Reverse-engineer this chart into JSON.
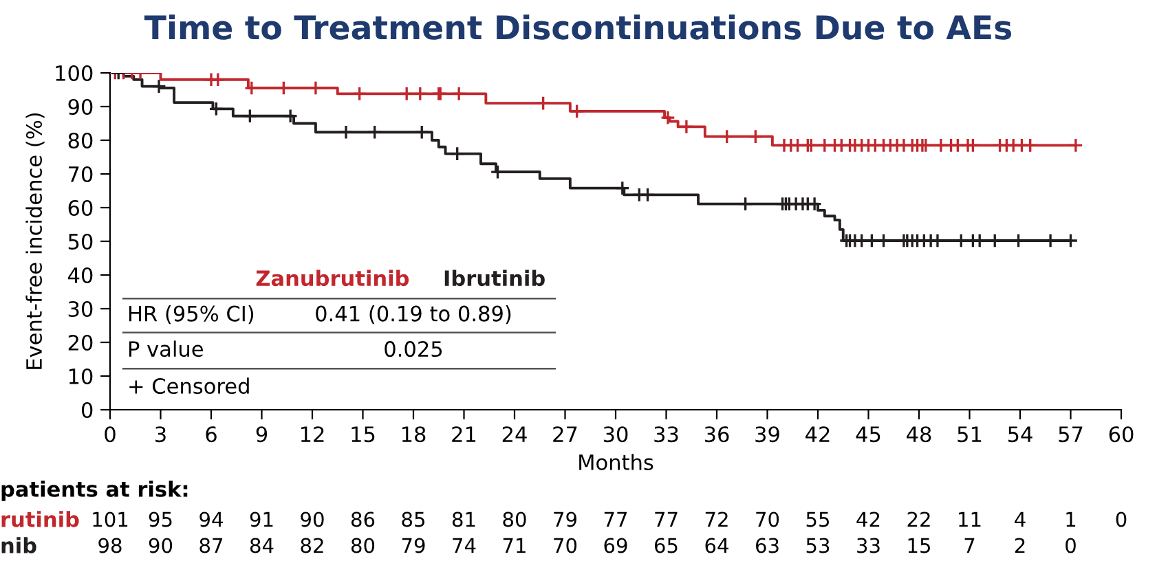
{
  "chart_data": {
    "type": "step",
    "title": "Time to Treatment Discontinuations Due to AEs",
    "xlabel": "Months",
    "ylabel": "Event-free incidence (%)",
    "xlim": [
      0,
      60
    ],
    "xticks": [
      0,
      3,
      6,
      9,
      12,
      15,
      18,
      21,
      24,
      27,
      30,
      33,
      36,
      39,
      42,
      45,
      48,
      51,
      54,
      57,
      60
    ],
    "ylim": [
      0,
      100
    ],
    "yticks": [
      0,
      10,
      20,
      30,
      40,
      50,
      60,
      70,
      80,
      90,
      100
    ],
    "grid": false,
    "legend": "bottom left",
    "series": [
      {
        "name": "Zanubrutinib",
        "color": "#c1272d",
        "x": [
          0,
          3.0,
          8.2,
          13.5,
          22.3,
          27.3,
          32.9,
          33.2,
          33.7,
          35.3,
          39.3,
          57.3
        ],
        "values": [
          100,
          98,
          95.5,
          93.8,
          91,
          88.6,
          86.7,
          85.6,
          84,
          81.1,
          78.5,
          78.5
        ]
      },
      {
        "name": "Ibrutinib",
        "color": "#231f20",
        "x": [
          0,
          0.8,
          1.4,
          1.9,
          3.0,
          3.8,
          6.1,
          7.3,
          10.9,
          12.2,
          19.1,
          19.5,
          19.9,
          22.0,
          22.9,
          25.5,
          27.3,
          30.5,
          34.9,
          42.0,
          42.4,
          43.0,
          43.3,
          43.5,
          57.0
        ],
        "values": [
          100,
          99,
          98,
          96,
          95.5,
          91.2,
          89.3,
          87.2,
          85,
          82.4,
          80,
          78,
          76,
          73,
          70.6,
          68.6,
          65.8,
          63.8,
          61.1,
          59.2,
          57.5,
          56.3,
          53.5,
          50.2,
          50.2
        ]
      },
      {
        "color": "#c1272d",
        "type": "scatter",
        "marker": "cross",
        "x": [
          0.3,
          0.8,
          1.3,
          1.8,
          6.0,
          6.4,
          8.4,
          10.3,
          12.2,
          14.8,
          17.6,
          18.4,
          19.5,
          19.6,
          20.7,
          25.7,
          27.7,
          33.1,
          34.2,
          36.6,
          38.3,
          40.0,
          40.4,
          40.8,
          41.4,
          41.6,
          42.4,
          43.0,
          43.4,
          43.9,
          44.2,
          44.6,
          45.0,
          45.4,
          45.9,
          46.3,
          46.7,
          47.1,
          47.6,
          47.9,
          48.2,
          48.4,
          49.3,
          49.9,
          50.3,
          50.9,
          51.2,
          52.8,
          53.2,
          53.6,
          54.1,
          54.6,
          57.3
        ],
        "values": [
          100,
          100,
          100,
          100,
          98,
          98,
          95.5,
          95.5,
          95.5,
          93.8,
          93.8,
          93.8,
          93.8,
          93.8,
          93.8,
          91,
          88.6,
          86.7,
          84,
          81.1,
          81.1,
          78.5,
          78.5,
          78.5,
          78.5,
          78.5,
          78.5,
          78.5,
          78.5,
          78.5,
          78.5,
          78.5,
          78.5,
          78.5,
          78.5,
          78.5,
          78.5,
          78.5,
          78.5,
          78.5,
          78.5,
          78.5,
          78.5,
          78.5,
          78.5,
          78.5,
          78.5,
          78.5,
          78.5,
          78.5,
          78.5,
          78.5,
          78.5
        ]
      },
      {
        "color": "#231f20",
        "type": "scatter",
        "marker": "cross",
        "x": [
          0.5,
          2.9,
          6.3,
          8.3,
          10.7,
          14.0,
          15.7,
          18.5,
          20.6,
          23.0,
          30.4,
          31.4,
          31.9,
          37.7,
          39.9,
          40.1,
          40.3,
          40.7,
          41.1,
          41.4,
          41.8,
          43.7,
          43.9,
          44.2,
          44.6,
          45.2,
          45.9,
          47.1,
          47.3,
          47.6,
          47.9,
          48.3,
          48.7,
          49.1,
          50.5,
          51.2,
          51.6,
          52.5,
          53.9,
          55.8,
          57.0
        ],
        "values": [
          100,
          96,
          89.3,
          87.2,
          87.2,
          82.4,
          82.4,
          82.4,
          76,
          70.6,
          65.8,
          63.8,
          63.8,
          61.1,
          61.1,
          61.1,
          61.1,
          61.1,
          61.1,
          61.1,
          61.1,
          50.2,
          50.2,
          50.2,
          50.2,
          50.2,
          50.2,
          50.2,
          50.2,
          50.2,
          50.2,
          50.2,
          50.2,
          50.2,
          50.2,
          50.2,
          50.2,
          50.2,
          50.2,
          50.2,
          50.2
        ]
      }
    ],
    "annotations": [
      "HR (95% CI)",
      "0.41 (0.19 to 0.89)",
      "P value",
      "0.025",
      "+ Censored",
      "patients at risk:",
      "rutinib",
      "nib",
      "101 95 94 91 90 86 85 81 80 79 77 77 72 70 55 42 22 11 4 1 0",
      "98 90 87 84 82 80 79 74 71 70 69 65 64 63 53 33 15 7 2 0"
    ]
  }
}
